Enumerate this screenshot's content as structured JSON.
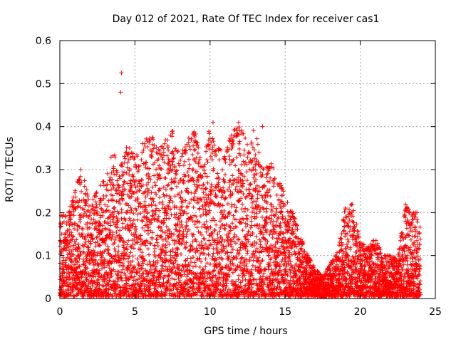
{
  "chart_data": {
    "type": "scatter",
    "title": "Day 012 of 2021, Rate Of TEC Index for receiver cas1",
    "xlabel": "GPS time / hours",
    "ylabel": "ROTI / TECUs",
    "xlim": [
      0,
      25
    ],
    "ylim": [
      0,
      0.6
    ],
    "xticks": [
      0,
      5,
      10,
      15,
      20,
      25
    ],
    "xtick_labels": [
      "0",
      "5",
      "10",
      "15",
      "20",
      "25"
    ],
    "yticks": [
      0,
      0.1,
      0.2,
      0.3,
      0.4,
      0.5,
      0.6
    ],
    "ytick_labels": [
      "0",
      "0.1",
      "0.2",
      "0.3",
      "0.4",
      "0.5",
      "0.6"
    ],
    "grid": true,
    "marker": "+",
    "color": "#ff0000",
    "series": [
      {
        "name": "ROTI",
        "envelope_hours": [
          0,
          0.5,
          1,
          1.5,
          2,
          2.5,
          3,
          3.5,
          4,
          4.5,
          5,
          5.5,
          6,
          6.5,
          7,
          7.5,
          8,
          8.5,
          9,
          9.5,
          10,
          10.5,
          11,
          11.5,
          12,
          12.5,
          13,
          13.5,
          14,
          14.5,
          15,
          15.5,
          16,
          16.5,
          17,
          17.5,
          18,
          18.5,
          19,
          19.5,
          20,
          20.5,
          21,
          21.5,
          22,
          22.5,
          23,
          23.5,
          24
        ],
        "envelope_max": [
          0.2,
          0.19,
          0.26,
          0.3,
          0.22,
          0.25,
          0.28,
          0.35,
          0.3,
          0.36,
          0.33,
          0.36,
          0.39,
          0.35,
          0.37,
          0.39,
          0.33,
          0.37,
          0.39,
          0.3,
          0.41,
          0.35,
          0.34,
          0.39,
          0.4,
          0.36,
          0.4,
          0.3,
          0.32,
          0.28,
          0.24,
          0.2,
          0.15,
          0.1,
          0.07,
          0.05,
          0.08,
          0.11,
          0.21,
          0.22,
          0.13,
          0.12,
          0.14,
          0.1,
          0.1,
          0.09,
          0.22,
          0.2,
          0.2
        ],
        "outliers": [
          [
            4.1,
            0.525
          ],
          [
            4.05,
            0.48
          ],
          [
            10.2,
            0.41
          ],
          [
            11.9,
            0.41
          ],
          [
            13.5,
            0.4
          ],
          [
            1.4,
            0.3
          ]
        ]
      }
    ]
  }
}
